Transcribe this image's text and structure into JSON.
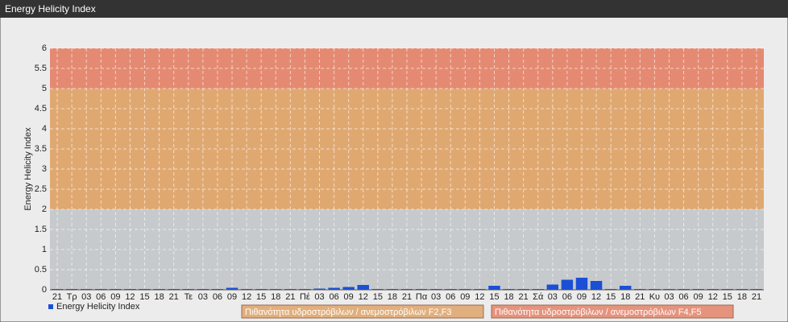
{
  "chart_data": {
    "type": "bar",
    "title": "Energy Helicity Index",
    "y_label": "Energy Helicity Index",
    "categories": [
      "21",
      "Τρ",
      "03",
      "06",
      "09",
      "12",
      "15",
      "18",
      "21",
      "Τε",
      "03",
      "06",
      "09",
      "12",
      "15",
      "18",
      "21",
      "Πέ",
      "03",
      "06",
      "09",
      "12",
      "15",
      "18",
      "21",
      "Πα",
      "03",
      "06",
      "09",
      "12",
      "15",
      "18",
      "21",
      "Σά",
      "03",
      "06",
      "09",
      "12",
      "15",
      "18",
      "21",
      "Κυ",
      "03",
      "06",
      "09",
      "12",
      "15",
      "18",
      "21"
    ],
    "series": [
      {
        "name": "Energy Helicity Index",
        "color": "#1a4fd6",
        "values": [
          0.02,
          0.02,
          0.02,
          0.02,
          0.02,
          0.02,
          0.02,
          0.02,
          0.02,
          0.02,
          0.02,
          0.02,
          0.05,
          0.02,
          0.02,
          0.02,
          0.02,
          0.02,
          0.03,
          0.05,
          0.07,
          0.12,
          0.02,
          0.02,
          0.02,
          0.02,
          0.02,
          0.02,
          0.02,
          0.02,
          0.1,
          0.02,
          0.02,
          0.02,
          0.13,
          0.25,
          0.3,
          0.22,
          0.02,
          0.1,
          0.02,
          0.02,
          0.02,
          0.02,
          0.02,
          0.02,
          0.02,
          0.02,
          0.02
        ]
      }
    ],
    "ylim": [
      0,
      6
    ],
    "yticks": [
      0,
      0.5,
      1,
      1.5,
      2,
      2.5,
      3,
      3.5,
      4,
      4.5,
      5,
      5.5,
      6
    ],
    "grid": true,
    "plot_bands": [
      {
        "from": 0,
        "to": 2,
        "color": "#c6cacd"
      },
      {
        "from": 2,
        "to": 5,
        "color": "#e0a871",
        "label": "Πιθανότητα υδροστρόβιλων / ανεμοστρόβιλων F2,F3"
      },
      {
        "from": 5,
        "to": 6,
        "color": "#e58a72",
        "label": "Πιθανότητα υδροστρόβιλων / ανεμοστρόβιλων F4,F5"
      }
    ]
  }
}
